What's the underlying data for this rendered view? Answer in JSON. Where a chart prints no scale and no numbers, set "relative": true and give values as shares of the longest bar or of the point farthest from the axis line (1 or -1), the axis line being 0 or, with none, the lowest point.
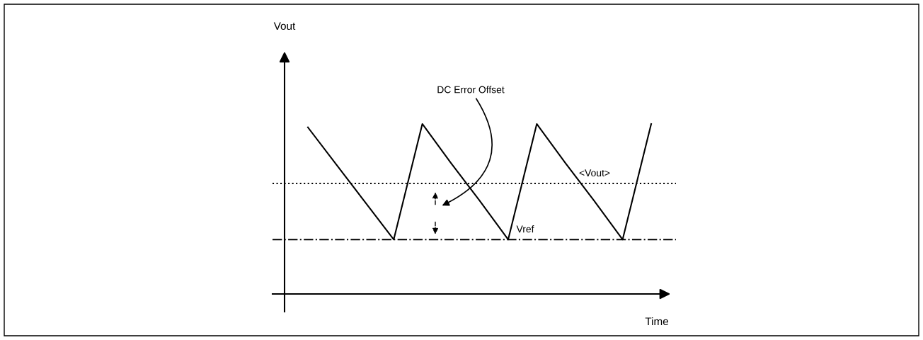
{
  "chart_data": {
    "type": "line",
    "relative": true,
    "xlabel": "Time",
    "categories": [
      null,
      null,
      null,
      null,
      null,
      null,
      null,
      null,
      null,
      null,
      null,
      null,
      null
    ],
    "series": [
      {
        "color": "#000000",
        "values": [
          0.98,
          0.76,
          0.54,
          0.32,
          1,
          0.77,
          0.55,
          0.32,
          1,
          0.77,
          0.55,
          0.32,
          1
        ]
      }
    ],
    "ref_lines": [
      {
        "axis": "y",
        "value": 0.65,
        "label": "<Vout>",
        "color": "#000000",
        "line_style": "dotted"
      },
      {
        "axis": "y",
        "value": 0.32,
        "label": "Vref",
        "color": "#000000",
        "line_style": "dashdot"
      }
    ],
    "annotations": [
      "DC Error Offset",
      "Vout"
    ],
    "marker": "none",
    "line_style": "solid"
  }
}
